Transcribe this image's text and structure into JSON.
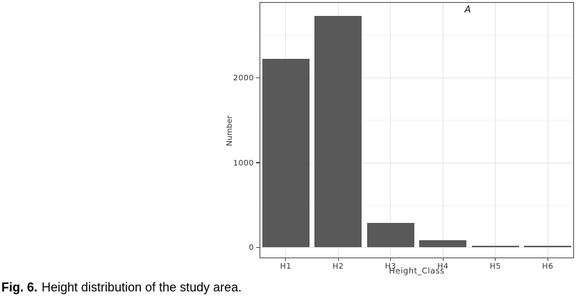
{
  "caption": {
    "label": "Fig. 6.",
    "text": "Height distribution of the study area."
  },
  "chart_data": {
    "type": "bar",
    "title": "",
    "panel_label": "A",
    "categories": [
      "H1",
      "H2",
      "H3",
      "H4",
      "H5",
      "H6"
    ],
    "values": [
      2230,
      2740,
      290,
      85,
      15,
      15
    ],
    "xlabel": "Height_Class",
    "ylabel": "Number",
    "yticks": [
      0,
      1000,
      2000
    ],
    "ytick_labels": [
      "0",
      "1000",
      "2000"
    ],
    "yminor_ticks": [
      500,
      1500,
      2500
    ],
    "ylim": [
      -130,
      2900
    ],
    "grid": true,
    "legend": "none",
    "bar_width_fraction": 0.9,
    "colors": {
      "bar": "#595959",
      "grid_major": "#e4e4e4",
      "grid_minor": "#f1f1f1",
      "panel_border": "#404040",
      "tick_mark": "#4a4a4a",
      "text": "#333333"
    }
  }
}
